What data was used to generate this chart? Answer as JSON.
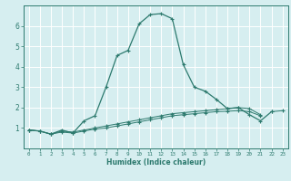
{
  "xlabel": "Humidex (Indice chaleur)",
  "x": [
    0,
    1,
    2,
    3,
    4,
    5,
    6,
    7,
    8,
    9,
    10,
    11,
    12,
    13,
    14,
    15,
    16,
    17,
    18,
    19,
    20,
    21,
    22,
    23
  ],
  "line1": [
    0.9,
    0.85,
    0.7,
    0.9,
    0.75,
    1.35,
    1.6,
    3.0,
    4.55,
    4.8,
    6.1,
    6.55,
    6.6,
    6.35,
    4.1,
    3.0,
    2.8,
    2.4,
    1.95,
    2.0,
    1.65,
    1.35,
    1.8,
    null
  ],
  "line2": [
    0.9,
    0.85,
    0.7,
    0.85,
    0.8,
    0.9,
    1.0,
    1.1,
    1.2,
    1.3,
    1.4,
    1.5,
    1.6,
    1.7,
    1.75,
    1.8,
    1.85,
    1.9,
    1.95,
    2.0,
    1.95,
    1.65,
    null,
    null
  ],
  "line3": [
    0.9,
    0.85,
    0.7,
    0.8,
    0.75,
    0.85,
    0.95,
    1.0,
    1.1,
    1.2,
    1.3,
    1.4,
    1.5,
    1.6,
    1.65,
    1.7,
    1.75,
    1.8,
    1.82,
    1.85,
    1.8,
    1.6,
    null,
    null
  ],
  "line4": [
    null,
    null,
    null,
    null,
    null,
    null,
    null,
    null,
    null,
    null,
    null,
    null,
    null,
    null,
    null,
    null,
    null,
    null,
    null,
    null,
    null,
    null,
    1.8,
    1.85
  ],
  "line_color": "#2d7a6e",
  "bg_color": "#d6eef0",
  "grid_color": "#ffffff",
  "ylim": [
    0,
    7
  ],
  "xlim": [
    -0.5,
    23.5
  ],
  "yticks": [
    1,
    2,
    3,
    4,
    5,
    6
  ],
  "xticks": [
    0,
    1,
    2,
    3,
    4,
    5,
    6,
    7,
    8,
    9,
    10,
    11,
    12,
    13,
    14,
    15,
    16,
    17,
    18,
    19,
    20,
    21,
    22,
    23
  ]
}
